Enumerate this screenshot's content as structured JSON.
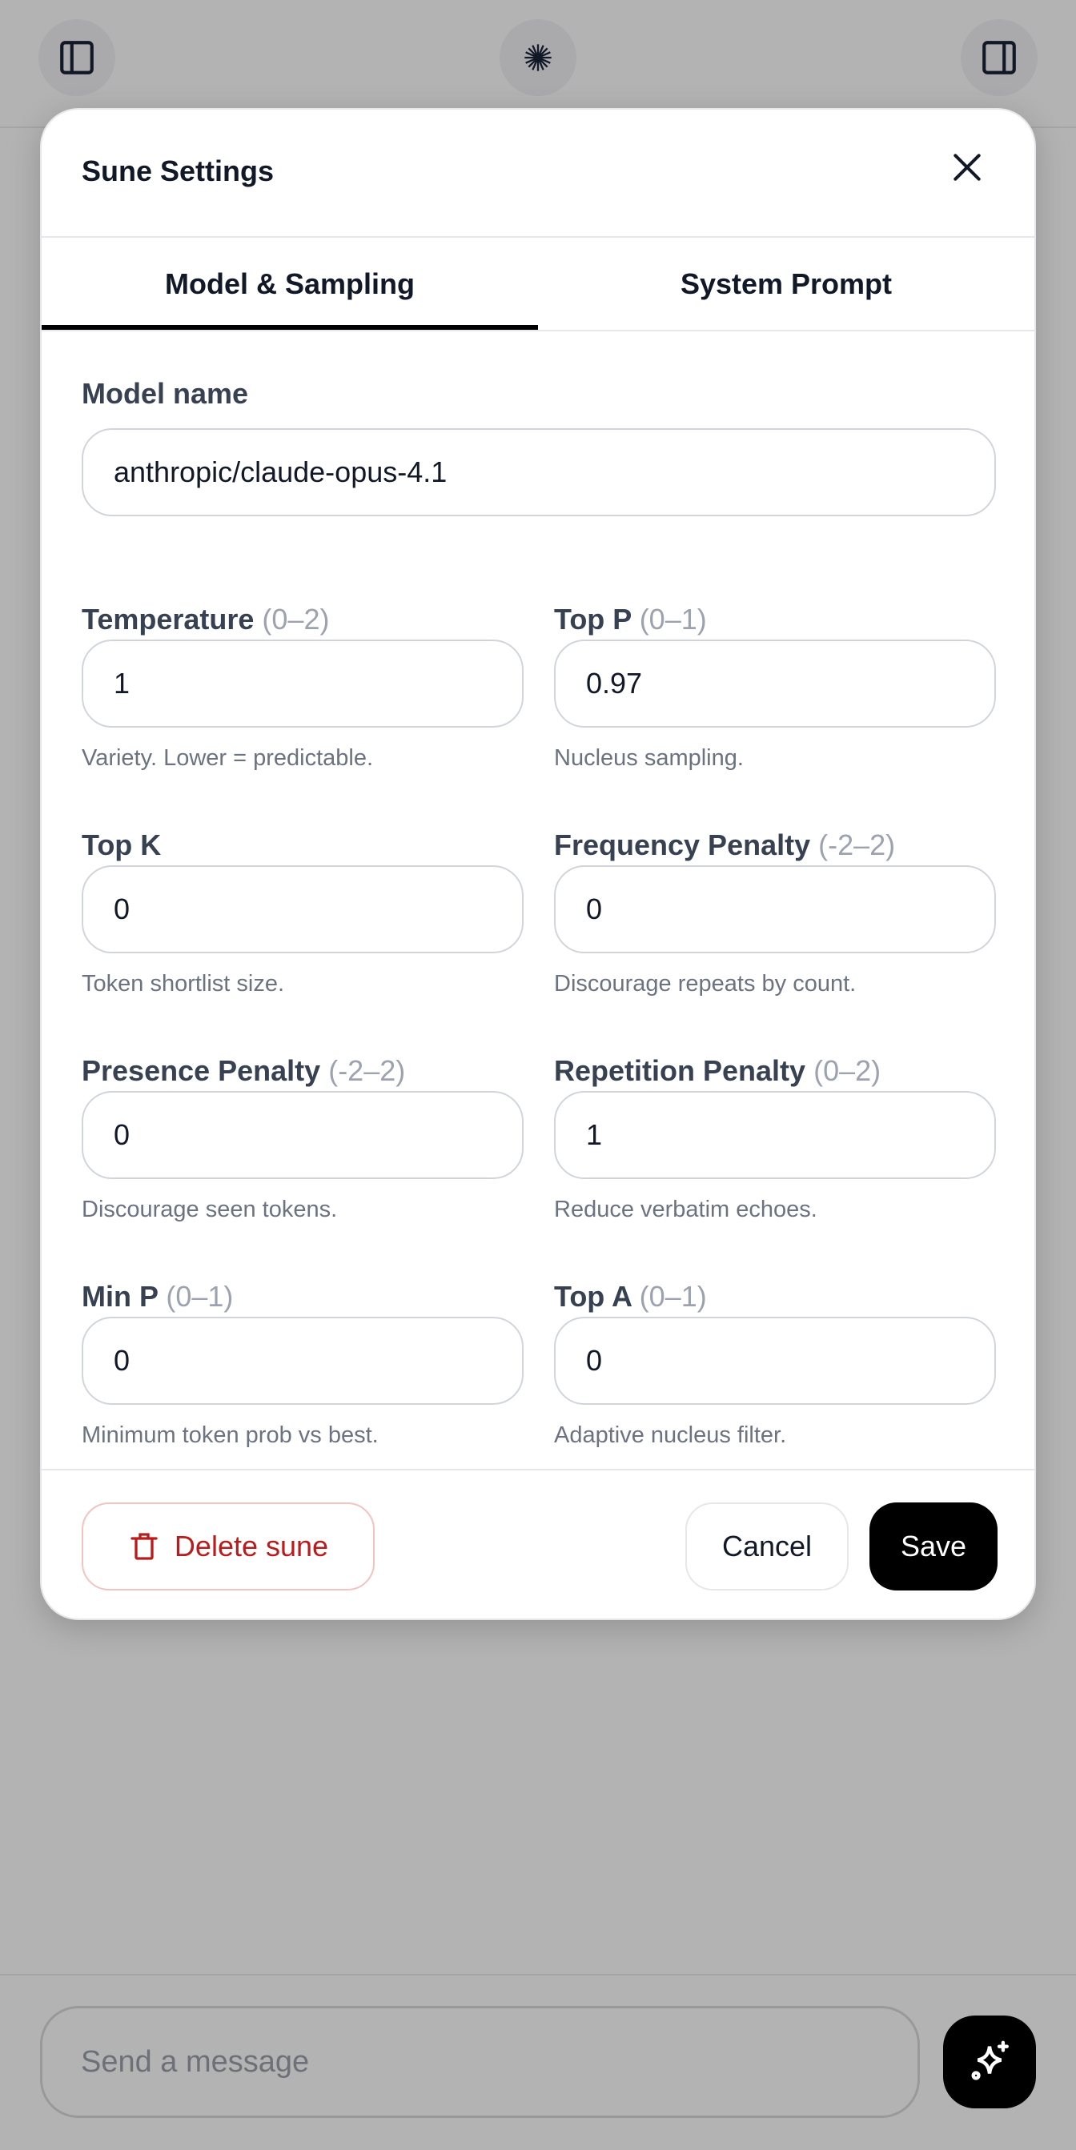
{
  "topbar": {
    "left_icon": "sidebar-left-icon",
    "center_icon": "sparkle-burst-icon",
    "right_icon": "sidebar-right-icon"
  },
  "modal": {
    "title": "Sune Settings",
    "tabs": [
      {
        "label": "Model & Sampling",
        "active": true
      },
      {
        "label": "System Prompt",
        "active": false
      }
    ],
    "model_name": {
      "label": "Model name",
      "value": "anthropic/claude-opus-4.1"
    },
    "fields": [
      {
        "label": "Temperature",
        "range": "(0–2)",
        "value": "1",
        "hint": "Variety. Lower = predictable."
      },
      {
        "label": "Top P",
        "range": "(0–1)",
        "value": "0.97",
        "hint": "Nucleus sampling."
      },
      {
        "label": "Top K",
        "range": "",
        "value": "0",
        "hint": "Token shortlist size."
      },
      {
        "label": "Frequency Penalty",
        "range": "(-2–2)",
        "value": "0",
        "hint": "Discourage repeats by count."
      },
      {
        "label": "Presence Penalty",
        "range": "(-2–2)",
        "value": "0",
        "hint": "Discourage seen tokens."
      },
      {
        "label": "Repetition Penalty",
        "range": "(0–2)",
        "value": "1",
        "hint": "Reduce verbatim echoes."
      },
      {
        "label": "Min P",
        "range": "(0–1)",
        "value": "0",
        "hint": "Minimum token prob vs best."
      },
      {
        "label": "Top A",
        "range": "(0–1)",
        "value": "0",
        "hint": "Adaptive nucleus filter."
      }
    ],
    "footer": {
      "delete_label": "Delete sune",
      "cancel_label": "Cancel",
      "save_label": "Save"
    }
  },
  "composer": {
    "placeholder": "Send a message",
    "send_icon": "sparkles-icon"
  },
  "colors": {
    "overlay": "#b3b3b3",
    "danger": "#b91c1c",
    "primary": "#000000"
  }
}
